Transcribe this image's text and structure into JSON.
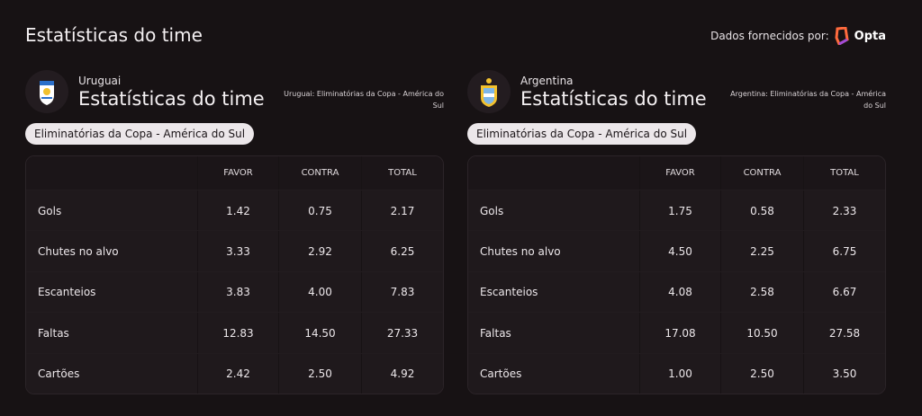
{
  "header": {
    "title": "Estatísticas do time",
    "provider_label": "Dados fornecidos por:",
    "provider": "Opta"
  },
  "teams": [
    {
      "name": "Uruguai",
      "heading": "Estatísticas do time",
      "competition_note": "Uruguai: Eliminatórias da Copa - América do Sul",
      "competition": "Eliminatórias da Copa - América do Sul",
      "table": {
        "columns": [
          "FAVOR",
          "CONTRA",
          "TOTAL"
        ],
        "rows": [
          [
            "Gols",
            "1.42",
            "0.75",
            "2.17"
          ],
          [
            "Chutes no alvo",
            "3.33",
            "2.92",
            "6.25"
          ],
          [
            "Escanteios",
            "3.83",
            "4.00",
            "7.83"
          ],
          [
            "Faltas",
            "12.83",
            "14.50",
            "27.33"
          ],
          [
            "Cartões",
            "2.42",
            "2.50",
            "4.92"
          ]
        ]
      }
    },
    {
      "name": "Argentina",
      "heading": "Estatísticas do time",
      "competition_note": "Argentina: Eliminatórias da Copa - América do Sul",
      "competition": "Eliminatórias da Copa - América do Sul",
      "table": {
        "columns": [
          "FAVOR",
          "CONTRA",
          "TOTAL"
        ],
        "rows": [
          [
            "Gols",
            "1.75",
            "0.58",
            "2.33"
          ],
          [
            "Chutes no alvo",
            "4.50",
            "2.25",
            "6.75"
          ],
          [
            "Escanteios",
            "4.08",
            "2.58",
            "6.67"
          ],
          [
            "Faltas",
            "17.08",
            "10.50",
            "27.58"
          ],
          [
            "Cartões",
            "1.00",
            "2.50",
            "3.50"
          ]
        ]
      }
    }
  ]
}
